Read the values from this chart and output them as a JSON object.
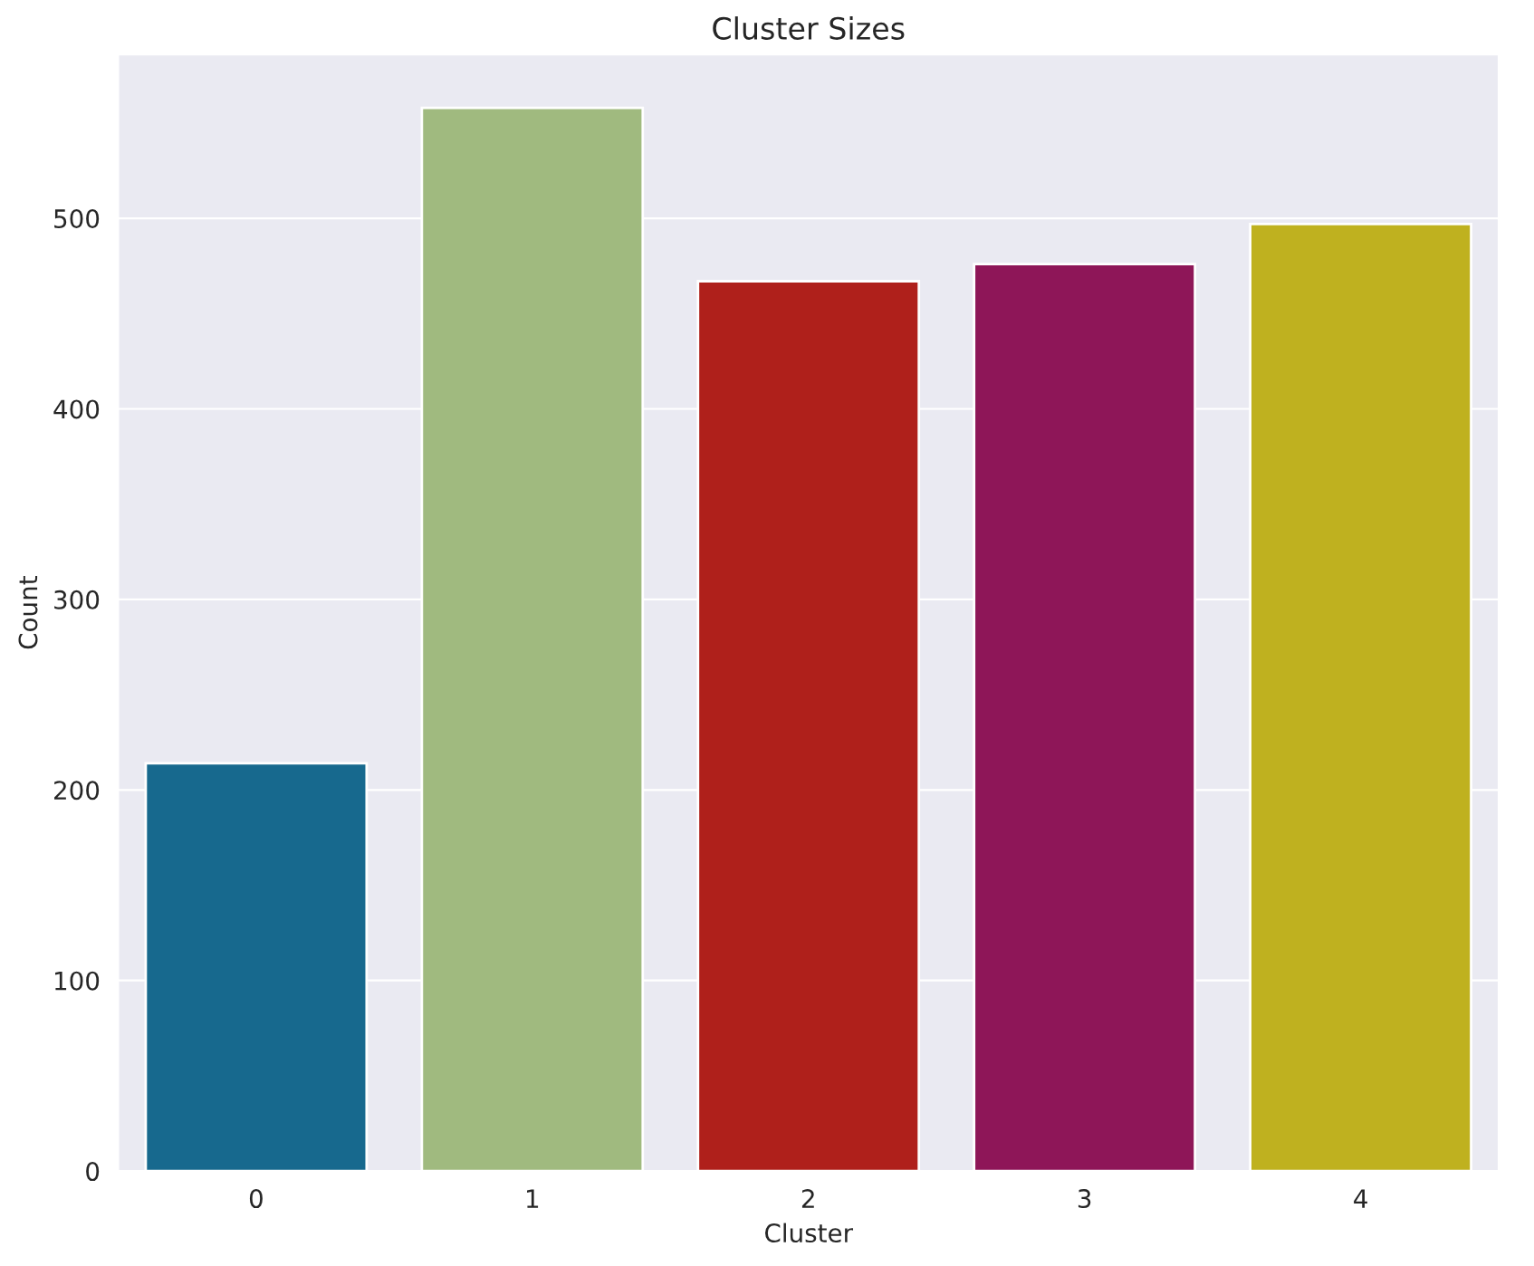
{
  "chart_data": {
    "type": "bar",
    "title": "Cluster Sizes",
    "xlabel": "Cluster",
    "ylabel": "Count",
    "categories": [
      "0",
      "1",
      "2",
      "3",
      "4"
    ],
    "values": [
      214,
      558,
      467,
      476,
      497
    ],
    "colors": [
      "#17698e",
      "#a0ba7f",
      "#af201b",
      "#8e1658",
      "#bfb11f"
    ],
    "ylim": [
      0,
      586
    ],
    "yticks": [
      0,
      100,
      200,
      300,
      400,
      500
    ],
    "grid": "y",
    "legend": false
  }
}
